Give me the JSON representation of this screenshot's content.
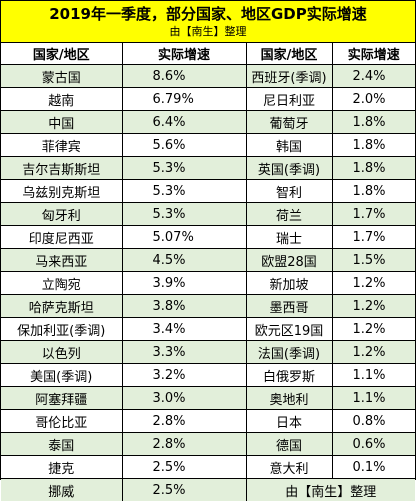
{
  "header": {
    "title": "2019年一季度，部分国家、地区GDP实际增速",
    "subtitle": "由【南生】整理"
  },
  "columns": [
    "国家/地区",
    "实际增速",
    "国家/地区",
    "实际增速"
  ],
  "rows": [
    {
      "c1": "蒙古国",
      "r1": "8.6%",
      "c2": "西班牙(季调)",
      "r2": "2.4%"
    },
    {
      "c1": "越南",
      "r1": "6.79%",
      "c2": "尼日利亚",
      "r2": "2.0%"
    },
    {
      "c1": "中国",
      "r1": "6.4%",
      "c2": "葡萄牙",
      "r2": "1.8%"
    },
    {
      "c1": "菲律宾",
      "r1": "5.6%",
      "c2": "韩国",
      "r2": "1.8%"
    },
    {
      "c1": "吉尔吉斯斯坦",
      "r1": "5.3%",
      "c2": "英国(季调)",
      "r2": "1.8%"
    },
    {
      "c1": "乌兹别克斯坦",
      "r1": "5.3%",
      "c2": "智利",
      "r2": "1.8%"
    },
    {
      "c1": "匈牙利",
      "r1": "5.3%",
      "c2": "荷兰",
      "r2": "1.7%"
    },
    {
      "c1": "印度尼西亚",
      "r1": "5.07%",
      "c2": "瑞士",
      "r2": "1.7%"
    },
    {
      "c1": "马来西亚",
      "r1": "4.5%",
      "c2": "欧盟28国",
      "r2": "1.5%"
    },
    {
      "c1": "立陶宛",
      "r1": "3.9%",
      "c2": "新加坡",
      "r2": "1.2%"
    },
    {
      "c1": "哈萨克斯坦",
      "r1": "3.8%",
      "c2": "墨西哥",
      "r2": "1.2%"
    },
    {
      "c1": "保加利亚(季调)",
      "r1": "3.4%",
      "c2": "欧元区19国",
      "r2": "1.2%"
    },
    {
      "c1": "以色列",
      "r1": "3.3%",
      "c2": "法国(季调)",
      "r2": "1.2%"
    },
    {
      "c1": "美国(季调)",
      "r1": "3.2%",
      "c2": "白俄罗斯",
      "r2": "1.1%"
    },
    {
      "c1": "阿塞拜疆",
      "r1": "3.0%",
      "c2": "奥地利",
      "r2": "1.1%"
    },
    {
      "c1": "哥伦比亚",
      "r1": "2.8%",
      "c2": "日本",
      "r2": "0.8%"
    },
    {
      "c1": "泰国",
      "r1": "2.8%",
      "c2": "德国",
      "r2": "0.6%"
    },
    {
      "c1": "捷克",
      "r1": "2.5%",
      "c2": "意大利",
      "r2": "0.1%"
    }
  ],
  "last_row": {
    "c1": "挪威",
    "r1": "2.5%",
    "note": "由【南生】整理"
  }
}
